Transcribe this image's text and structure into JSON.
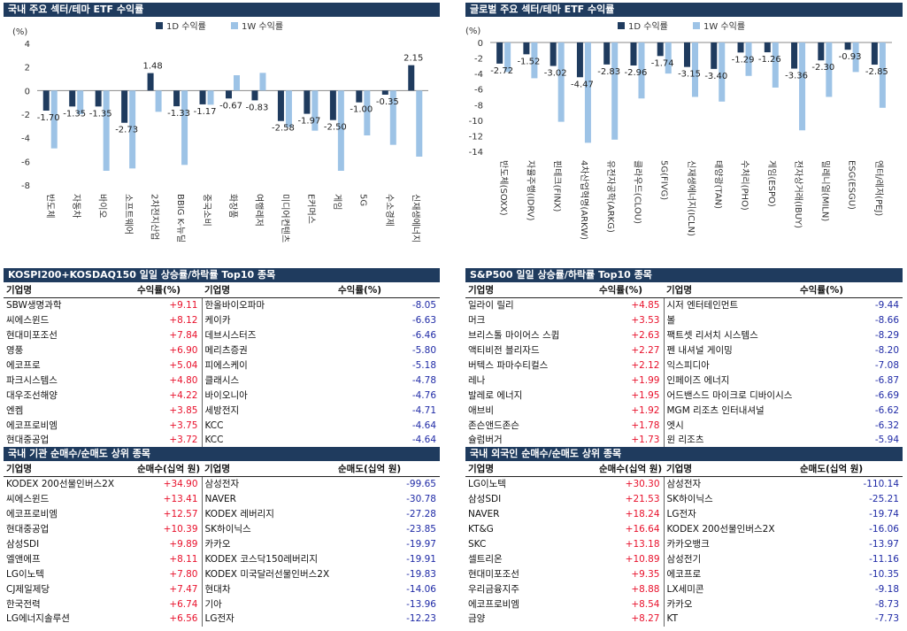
{
  "colors": {
    "header_bg": "#1f3b5e",
    "d1": "#1f3b5e",
    "w1": "#9dc3e6",
    "pos": "#e8102b",
    "neg": "#1f2aa6"
  },
  "chart_data": [
    {
      "type": "bar",
      "title": "국내 주요 섹터/테마 ETF 수익률",
      "ylabel": "(%)",
      "ylim": [
        -8,
        4
      ],
      "yticks": [
        4,
        2,
        0,
        -2,
        -4,
        -6,
        -8
      ],
      "categories": [
        "반도체",
        "자동차",
        "바이오",
        "소프트웨어",
        "2차전지산업",
        "BBIG K-뉴딜",
        "중국소비",
        "화장품",
        "여행레저",
        "미디어컨텐츠",
        "E커머스",
        "게임",
        "5G",
        "수소경제",
        "신재생에너지"
      ],
      "series": [
        {
          "name": "1D 수익률",
          "values": [
            -1.7,
            -1.35,
            -1.35,
            -2.73,
            1.48,
            -1.33,
            -1.17,
            -0.67,
            -0.83,
            -2.58,
            -1.97,
            -2.5,
            -1.0,
            -0.35,
            2.15
          ]
        },
        {
          "name": "1W 수익률",
          "values": [
            -4.9,
            -2.0,
            -6.8,
            -6.6,
            -1.8,
            -6.3,
            -1.2,
            1.3,
            1.5,
            -3.1,
            -3.4,
            -6.8,
            -3.8,
            -4.6,
            -5.6
          ]
        }
      ]
    },
    {
      "type": "bar",
      "title": "글로벌 주요 섹터/테마 ETF 수익률",
      "ylabel": "(%)",
      "ylim": [
        -14,
        0
      ],
      "yticks": [
        0,
        -2,
        -4,
        -6,
        -8,
        -10,
        -12,
        -14
      ],
      "categories": [
        "반도체(SOXX)",
        "자율주행(IDRV)",
        "핀테크(FINX)",
        "4차산업혁명(ARKW)",
        "유전자공학(ARKG)",
        "클라우드(CLOU)",
        "5G(FIVG)",
        "신재생에너지(ICLN)",
        "태양광(TAN)",
        "수처리(PHO)",
        "게임(ESPO)",
        "전자상거래(IBUY)",
        "밀레니얼(MILN)",
        "ESG(ESGU)",
        "엔터/레저(PEJ)"
      ],
      "series": [
        {
          "name": "1D 수익률",
          "values": [
            -2.72,
            -1.52,
            -3.02,
            -4.47,
            -2.83,
            -2.96,
            -1.74,
            -3.15,
            -3.4,
            -1.29,
            -1.26,
            -3.36,
            -2.3,
            -0.93,
            -2.85
          ]
        },
        {
          "name": "1W 수익률",
          "values": [
            -3.8,
            -4.6,
            -10.2,
            -12.9,
            -12.5,
            -7.2,
            -4.0,
            -7.0,
            -7.6,
            -4.3,
            -5.8,
            -11.3,
            -7.0,
            -3.8,
            -8.4
          ]
        }
      ]
    }
  ],
  "tables": [
    {
      "title": "KOSPI200+KOSDAQ150 일일 상승률/하락률 Top10 종목",
      "headers": [
        "기업명",
        "수익률(%)",
        "기업명",
        "수익률(%)"
      ],
      "rows": [
        [
          "SBW생명과학",
          "+9.11",
          "한올바이오파마",
          "-8.05"
        ],
        [
          "씨에스윈드",
          "+8.12",
          "케이카",
          "-6.63"
        ],
        [
          "현대미포조선",
          "+7.84",
          "데브시스터즈",
          "-6.46"
        ],
        [
          "영풍",
          "+6.90",
          "메리츠증권",
          "-5.80"
        ],
        [
          "에코프로",
          "+5.04",
          "피에스케이",
          "-5.18"
        ],
        [
          "파크시스템스",
          "+4.80",
          "클래시스",
          "-4.78"
        ],
        [
          "대우조선해양",
          "+4.22",
          "바이오니아",
          "-4.76"
        ],
        [
          "엔켐",
          "+3.85",
          "세방전지",
          "-4.71"
        ],
        [
          "에코프로비엠",
          "+3.75",
          "KCC",
          "-4.64"
        ],
        [
          "현대중공업",
          "+3.72",
          "KCC",
          "-4.64"
        ]
      ]
    },
    {
      "title": "S&P500 일일 상승률/하락률 Top10 종목",
      "headers": [
        "기업명",
        "수익률(%)",
        "기업명",
        "수익률(%)"
      ],
      "rows": [
        [
          "일라이 릴리",
          "+4.85",
          "시저 엔터테인먼트",
          "-9.44"
        ],
        [
          "머크",
          "+3.53",
          "볼",
          "-8.66"
        ],
        [
          "브리스톨 마이어스 스큅",
          "+2.63",
          "팩트셋 리서치 시스템스",
          "-8.29"
        ],
        [
          "액티비전 블리자드",
          "+2.27",
          "펜 내셔널 게이밍",
          "-8.20"
        ],
        [
          "버텍스 파마수티컬스",
          "+2.12",
          "익스피디아",
          "-7.08"
        ],
        [
          "레나",
          "+1.99",
          "인페이즈 에너지",
          "-6.87"
        ],
        [
          "발레로 에너지",
          "+1.95",
          "어드밴스드 마이크로 디바이시스",
          "-6.69"
        ],
        [
          "애브비",
          "+1.92",
          "MGM 리조츠 인터내셔널",
          "-6.62"
        ],
        [
          "존슨앤드존슨",
          "+1.78",
          "엣시",
          "-6.32"
        ],
        [
          "슐럼버거",
          "+1.73",
          "윈 리조츠",
          "-5.94"
        ]
      ]
    },
    {
      "title": "국내 기관 순매수/순매도 상위 종목",
      "headers": [
        "기업명",
        "순매수(십억 원)",
        "기업명",
        "순매도(십억 원)"
      ],
      "rows": [
        [
          "KODEX 200선물인버스2X",
          "+34.90",
          "삼성전자",
          "-99.65"
        ],
        [
          "씨에스윈드",
          "+13.41",
          "NAVER",
          "-30.78"
        ],
        [
          "에코프로비엠",
          "+12.57",
          "KODEX 레버리지",
          "-27.28"
        ],
        [
          "현대중공업",
          "+10.39",
          "SK하이닉스",
          "-23.85"
        ],
        [
          "삼성SDI",
          "+9.89",
          "카카오",
          "-19.97"
        ],
        [
          "엘앤에프",
          "+8.11",
          "KODEX 코스닥150레버리지",
          "-19.91"
        ],
        [
          "LG이노텍",
          "+7.80",
          "KODEX 미국달러선물인버스2X",
          "-19.83"
        ],
        [
          "CJ제일제당",
          "+7.47",
          "현대차",
          "-14.06"
        ],
        [
          "한국전력",
          "+6.74",
          "기아",
          "-13.96"
        ],
        [
          "LG에너지솔루션",
          "+6.56",
          "LG전자",
          "-12.23"
        ]
      ]
    },
    {
      "title": "국내 외국인 순매수/순매도 상위 종목",
      "headers": [
        "기업명",
        "순매수(십억 원)",
        "기업명",
        "순매도(십억 원)"
      ],
      "rows": [
        [
          "LG이노텍",
          "+30.30",
          "삼성전자",
          "-110.14"
        ],
        [
          "삼성SDI",
          "+21.53",
          "SK하이닉스",
          "-25.21"
        ],
        [
          "NAVER",
          "+18.24",
          "LG전자",
          "-19.74"
        ],
        [
          "KT&G",
          "+16.64",
          "KODEX 200선물인버스2X",
          "-16.06"
        ],
        [
          "SKC",
          "+13.18",
          "카카오뱅크",
          "-13.97"
        ],
        [
          "셀트리온",
          "+10.89",
          "삼성전기",
          "-11.16"
        ],
        [
          "현대미포조선",
          "+9.35",
          "에코프로",
          "-10.35"
        ],
        [
          "우리금융지주",
          "+8.88",
          "LX세미콘",
          "-9.18"
        ],
        [
          "에코프로비엠",
          "+8.54",
          "카카오",
          "-8.73"
        ],
        [
          "금양",
          "+8.27",
          "KT",
          "-7.73"
        ]
      ]
    }
  ]
}
